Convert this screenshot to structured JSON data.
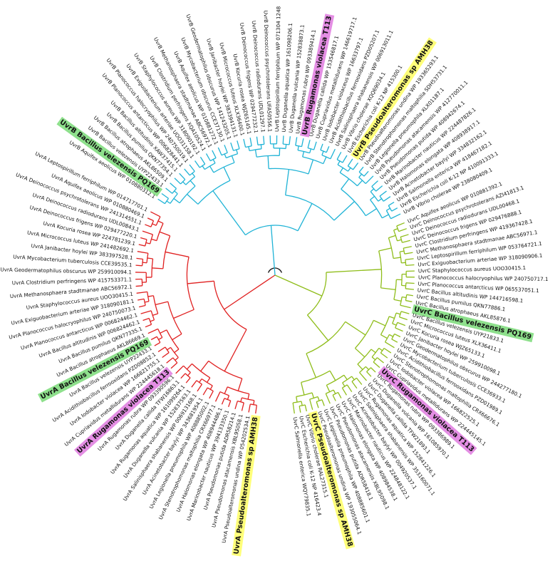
{
  "colors": {
    "UvrA": "#e02020",
    "UvrB": "#1fb3d6",
    "UvrC": "#8fbd1a",
    "root": "#111111",
    "highlight_green": "#8ee08c",
    "highlight_yellow": "#ffff7a",
    "highlight_pink": "#e48ee4"
  },
  "clades": [
    {
      "name": "UvrA",
      "color_key": "UvrA",
      "leaves": [
        {
          "label": "UvrA Pseudoalteromonas sp AMH38",
          "highlight": "yellow"
        },
        {
          "label": "UvrA Pseudoalteromonas undina WP 054202534.1"
        },
        {
          "label": "UvrA Pseudomonas atacamensis XBL95058.1"
        },
        {
          "label": "UvrA Pseudomonas putida ADR58214.1"
        },
        {
          "label": "UvrA Marinobacter nauticus WP 394133350.1"
        },
        {
          "label": "UvrA Halomonas elongata WP 408944486.1"
        },
        {
          "label": "UvrA Stenotrophomonas maltophilia CRX66977.1"
        },
        {
          "label": "UvrA Legionella pneumophila WP 408885002.1"
        },
        {
          "label": "UvrA Acinetobacter baylyi WP 343681954.1"
        },
        {
          "label": "UvrA Salinisphaera shabanensis WP 006913168.1"
        },
        {
          "label": "UvrA Duganella vulcania WP 152837563.1"
        },
        {
          "label": "UvrA Rugamonas aquatica WP 161099264.1"
        },
        {
          "label": "UvrA Duganella callida TFW16863.1"
        },
        {
          "label": "UvrA Rugamonas rubra WP 093390596.1"
        },
        {
          "label": "UvrA Rugamonas violacea T113",
          "highlight": "pink"
        },
        {
          "label": "UvrA Cupriavidus metallidurans WP 224445618.1"
        },
        {
          "label": "UvrA Iodobacter violacea WP 166821755.1"
        },
        {
          "label": "UvrA Acidithiobacillus ferrooxidans PZD08852.1"
        },
        {
          "label": "UvrA Bacillus velezensis UYP22433.1"
        },
        {
          "label": "UvrA Bacillus velezensis PQ169",
          "highlight": "green"
        },
        {
          "label": "UvrA Bacillus atrophaeus AKL86669.1"
        },
        {
          "label": "UvrA Bacillus pumilus QKN77335.1"
        },
        {
          "label": "UvrA Bacillus altitudinis WP 006824462.1"
        },
        {
          "label": "UvrA Planococcus antarcticus WP 006824462.1"
        },
        {
          "label": "UvrA Planococcus halocryophilus WP 240750073.1"
        },
        {
          "label": "UvrA Exiguobacterium arteriae WP 318090181.1"
        },
        {
          "label": "UvrA Staphylococcus aureus UOO30415.1"
        },
        {
          "label": "UvrA Methanosphaera stadtmanae ABC56972.1"
        },
        {
          "label": "UvrA Clostridium perfringens WP 415753371.1"
        },
        {
          "label": "UvrA Geodermatophilus obscurus WP 259910094.1"
        },
        {
          "label": "UvrA Mycobacterium tuberculosis CCE39535.1"
        },
        {
          "label": "UvrA Janibacter hoylei WP 383397528.1"
        },
        {
          "label": "UvrA Micrococcus luteus WP 241482692.1"
        },
        {
          "label": "UvrA Kocuria rosea WP 224781239.1"
        },
        {
          "label": "UvrA Deinococcus frigens WP 029477220.1"
        },
        {
          "label": "UvrA Deinococcus radiodurans UDL00843.1"
        },
        {
          "label": "UvrA Deinococcus psychrotolerans WP 241314551.1"
        },
        {
          "label": "UvrA Aquifex aeolicus WP 010880469.1"
        },
        {
          "label": "UvrA Leptospirillum ferriphilum WP 014717701.1"
        }
      ]
    },
    {
      "name": "UvrC",
      "color_key": "UvrC",
      "leaves": [
        {
          "label": "UvrC Aquifex aeolicus WP 010881392.1"
        },
        {
          "label": "UvrC Deinococcus psychrotolerans AZI41813.1"
        },
        {
          "label": "UvrC Deinococcus radiodurans UDL00468.1"
        },
        {
          "label": "UvrC Deinococcus frigens WP 029476888.1"
        },
        {
          "label": "UvrC Clostridium perfringens WP 419367428.1"
        },
        {
          "label": "UvrC Methanosphaera stadtmanae ABC56971.1"
        },
        {
          "label": "UvrC Leptospirillum ferriphilum WP 053764721.1"
        },
        {
          "label": "UvrC Exiguobacterium arteriae WP 318090906.1"
        },
        {
          "label": "UvrC Staphylococcus aureus UOO30415.1"
        },
        {
          "label": "UvrC Planococcus halocryophilus WP 240750717.1"
        },
        {
          "label": "UvrC Planococcus antarcticus WP 065537051.1"
        },
        {
          "label": "UvrC Bacillus altitudinis WP 144716598.1"
        },
        {
          "label": "UvrC Bacillus pumilus QKN77886.1"
        },
        {
          "label": "UvrC Bacillus atrophaeus AKL85876.1"
        },
        {
          "label": "UvrC Bacillus velezensis PQ169",
          "highlight": "green"
        },
        {
          "label": "UvrC Bacillus velezensis UYP21833.1"
        },
        {
          "label": "UvrC Micrococcus luteus XLX36411.1"
        },
        {
          "label": "UvrC Kocuria rosea WJZ65133.1"
        },
        {
          "label": "UvrC Janibacter hoylei WP 259910098.1"
        },
        {
          "label": "UvrC Geodermatophilus obscurus WP 244277180.1"
        },
        {
          "label": "UvrC Mycobacterium tuberculosis CCE36933.1"
        },
        {
          "label": "UvrC Acidithiobacillus ferrooxidans PZD01989.1"
        },
        {
          "label": "UvrC Stenotrophomonas maltophilia CRX66676.1"
        },
        {
          "label": "UvrC Iodobacter violacea WP 166822525.1"
        },
        {
          "label": "UvrC Cupriavidus metallidurans WP 224445145.1"
        },
        {
          "label": "UvrC Rugamonas violacea T113",
          "highlight": "pink"
        },
        {
          "label": "UvrC Rugamonas rubra WP 093386989.1"
        },
        {
          "label": "UvrC Duganella vulcania WP 161085970.1"
        },
        {
          "label": "UvrC Duganella callida TFW21893.1"
        },
        {
          "label": "UvrC Rugamonas aquatica WP 152841226.1"
        },
        {
          "label": "UvrC Salinisphaera shabanensis WP 353160071.1"
        },
        {
          "label": "UvrC Acinetobacter baylyi WP 004920537.1"
        },
        {
          "label": "UvrC Marinobacter nauticus WP 224848122.1"
        },
        {
          "label": "UvrC Halomonas elongata WP 408984538.1"
        },
        {
          "label": "UvrC Pseudomonas atacamensis XBL95098.1"
        },
        {
          "label": "UvrC Pseudomonas putida ADR58418.1"
        },
        {
          "label": "UvrC Legionella pneumophila WP 408885601.1"
        },
        {
          "label": "UvrC Pseudoalteromonas undina WP 193055064.1"
        },
        {
          "label": "UvrC Pseudoalteromonas sp AMH38",
          "highlight": "yellow"
        },
        {
          "label": "UvrC Vibrio cholerae RAL27315.1"
        },
        {
          "label": "UvrC Escherichia coli K-12 NP 416423.4"
        },
        {
          "label": "UvrC Salmonella enterica WQY79835.1"
        }
      ]
    },
    {
      "name": "UvrB",
      "color_key": "UvrB",
      "leaves": [
        {
          "label": "UvrB Aquifex aeolicus WP 010880312.1"
        },
        {
          "label": "UvrB Bacillus velezensis PQ169",
          "highlight": "green"
        },
        {
          "label": "UvrB Bacillus velezensis UYP22433.1"
        },
        {
          "label": "UvrB Bacillus atrophaeus AKL86509.1"
        },
        {
          "label": "UvrB Bacillus pumilus QKN77354.1"
        },
        {
          "label": "UvrB Bacillus altitudinis XAW37415.1"
        },
        {
          "label": "UvrB Planococcus antarcticus WP 006828441.1"
        },
        {
          "label": "UvrB Planococcus halocryophilus WP 240750019.1"
        },
        {
          "label": "UvrB Exiguobacterium arteriae UOO31158.1"
        },
        {
          "label": "UvrB Staphylococcus aureus WP 318090192.1"
        },
        {
          "label": "UvrB Clostridium perfringens XQA10524.1"
        },
        {
          "label": "UvrB Methanosphaera stadtmanae ABC56972.1"
        },
        {
          "label": "UvrB Aquifex aeolicus WP 010881272.1"
        },
        {
          "label": "UvrB Mycobacterium obscurus CCE37130.1"
        },
        {
          "label": "UvrB Geodermatophilus obscurus WP 141243205.1"
        },
        {
          "label": "UvrB Janibacter hoylei WP 383394131.1"
        },
        {
          "label": "UvrB Micrococcus luteus XLX36400.1"
        },
        {
          "label": "UvrB Kocuria rosea WJZ65145.1"
        },
        {
          "label": "UvrB Deinococcus frigens WP 029477232.1"
        },
        {
          "label": "UvrB Deinococcus radiodurans UDL01297.1"
        },
        {
          "label": "UvrB Deinococcus psychrotolerans UFA50556.1"
        },
        {
          "label": "UvrB Leptospirillum ferriphilum WP 071304 1248"
        },
        {
          "label": "UvrB Duganella aquatica WP 161098206.1"
        },
        {
          "label": "UvrB Duganella vulcania WP 152838873.1"
        },
        {
          "label": "UvrB Rugamonas rubra WP 093389414.1"
        },
        {
          "label": "UvrB Rugamonas violacea T113",
          "highlight": "pink"
        },
        {
          "label": "UvrB Duganella callida WP 153546817.1"
        },
        {
          "label": "UvrB Cupriavidus metallidurans WP 146619717.1"
        },
        {
          "label": "UvrB Iodobacter violaceus WP 16633797.1"
        },
        {
          "label": "UvrB Acidithiobacillus ferrooxidans PZD05207.1"
        },
        {
          "label": "UvrB Salinisphaera shabanensis WP 006913011.1"
        },
        {
          "label": "UvrB Vibrio cholerae XQQ69034.1"
        },
        {
          "label": "UvrB Escherichia coli K-12 NP 415300.1"
        },
        {
          "label": "UvrB Pseudoalteromonas sp AMH38",
          "highlight": "yellow"
        },
        {
          "label": "UvrB Pseudoalteromonas undina WP 193365293.1"
        },
        {
          "label": "UvrB Stenotrophomonas maltophilia SDH53731.1"
        },
        {
          "label": "UvrB Legionella pneumophila XLX01187.1"
        },
        {
          "label": "UvrB Pseudomonas atacamensis WP 412770011.1"
        },
        {
          "label": "UvrB Pseudomonas putida WP 408942674.1"
        },
        {
          "label": "UvrB Marinobacter nauticus WP 224487826.1"
        },
        {
          "label": "UvrB Halomonas elongata WP 408938917.1"
        },
        {
          "label": "UvrB Acinetobacter baylyi WP 334832162.1"
        },
        {
          "label": "UvrB Salmonella enterica WP 418467182.1"
        },
        {
          "label": "UvrB Escherichia coli K-12 NP 410091333.1"
        },
        {
          "label": "UvrB Vibrio cholerae WP 238080409.1"
        }
      ]
    }
  ]
}
